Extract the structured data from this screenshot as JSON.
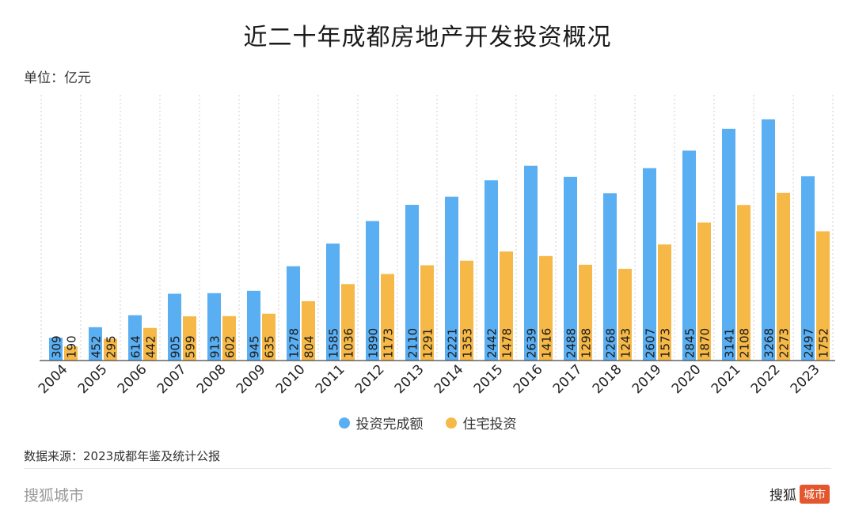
{
  "header": {
    "title": "近二十年成都房地产开发投资概况",
    "unit": "单位：亿元"
  },
  "colors": {
    "investment": "#5aaef2",
    "residential": "#f6b847"
  },
  "chart_data": {
    "type": "bar",
    "title": "近二十年成都房地产开发投资概况",
    "ylabel": "单位：亿元",
    "xlabel": "",
    "grid": "vertical-dotted",
    "legend_position": "bottom-center",
    "categories": [
      "2004",
      "2005",
      "2006",
      "2007",
      "2008",
      "2009",
      "2010",
      "2011",
      "2012",
      "2013",
      "2014",
      "2015",
      "2016",
      "2017",
      "2018",
      "2019",
      "2020",
      "2021",
      "2022",
      "2023"
    ],
    "ylim": [
      0,
      3600
    ],
    "series": [
      {
        "name": "投资完成额",
        "values": [
          309,
          452,
          614,
          905,
          913,
          945,
          1278,
          1585,
          1890,
          2110,
          2221,
          2442,
          2639,
          2488,
          2268,
          2607,
          2845,
          3141,
          3268,
          2497
        ]
      },
      {
        "name": "住宅投资",
        "values": [
          190,
          295,
          442,
          599,
          602,
          635,
          804,
          1036,
          1173,
          1291,
          1353,
          1478,
          1416,
          1298,
          1243,
          1573,
          1870,
          2108,
          2273,
          1752
        ]
      }
    ]
  },
  "legend": {
    "items": [
      "投资完成额",
      "住宅投资"
    ]
  },
  "footer": {
    "source": "数据来源：2023成都年鉴及统计公报",
    "brand_left": "搜狐城市",
    "brand_right_text": "搜狐",
    "brand_right_badge": "城市"
  }
}
